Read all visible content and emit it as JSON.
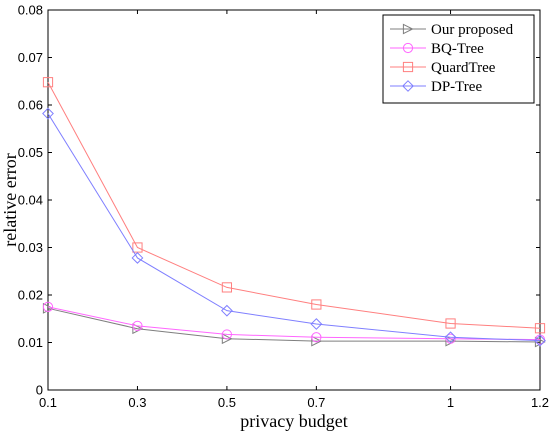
{
  "chart_data": {
    "type": "line",
    "xlabel": "privacy budget",
    "ylabel": "relative error",
    "x": [
      0.1,
      0.3,
      0.5,
      0.7,
      1,
      1.2
    ],
    "xticks": [
      "0.1",
      "0.3",
      "0.5",
      "0.7",
      "1",
      "1.2"
    ],
    "xlim": [
      0.1,
      1.2
    ],
    "yticks": [
      "0",
      "0.01",
      "0.02",
      "0.03",
      "0.04",
      "0.05",
      "0.06",
      "0.07",
      "0.08"
    ],
    "ylim": [
      0,
      0.08
    ],
    "grid": false,
    "legend_position": "top-right",
    "series": [
      {
        "name": "Our proposed",
        "marker": "triangle-right",
        "color": "#7f7f7f",
        "values": [
          0.0172,
          0.0129,
          0.0108,
          0.0103,
          0.0103,
          0.0101
        ]
      },
      {
        "name": "BQ-Tree",
        "marker": "circle",
        "color": "#ff66ff",
        "values": [
          0.0175,
          0.0135,
          0.0117,
          0.0111,
          0.0108,
          0.0106
        ]
      },
      {
        "name": "QuardTree",
        "marker": "square",
        "color": "#ff7f7f",
        "values": [
          0.0648,
          0.03,
          0.0216,
          0.018,
          0.014,
          0.013
        ]
      },
      {
        "name": "DP-Tree",
        "marker": "diamond",
        "color": "#7f7fff",
        "values": [
          0.0582,
          0.0278,
          0.0167,
          0.0139,
          0.0111,
          0.0104
        ]
      }
    ]
  }
}
